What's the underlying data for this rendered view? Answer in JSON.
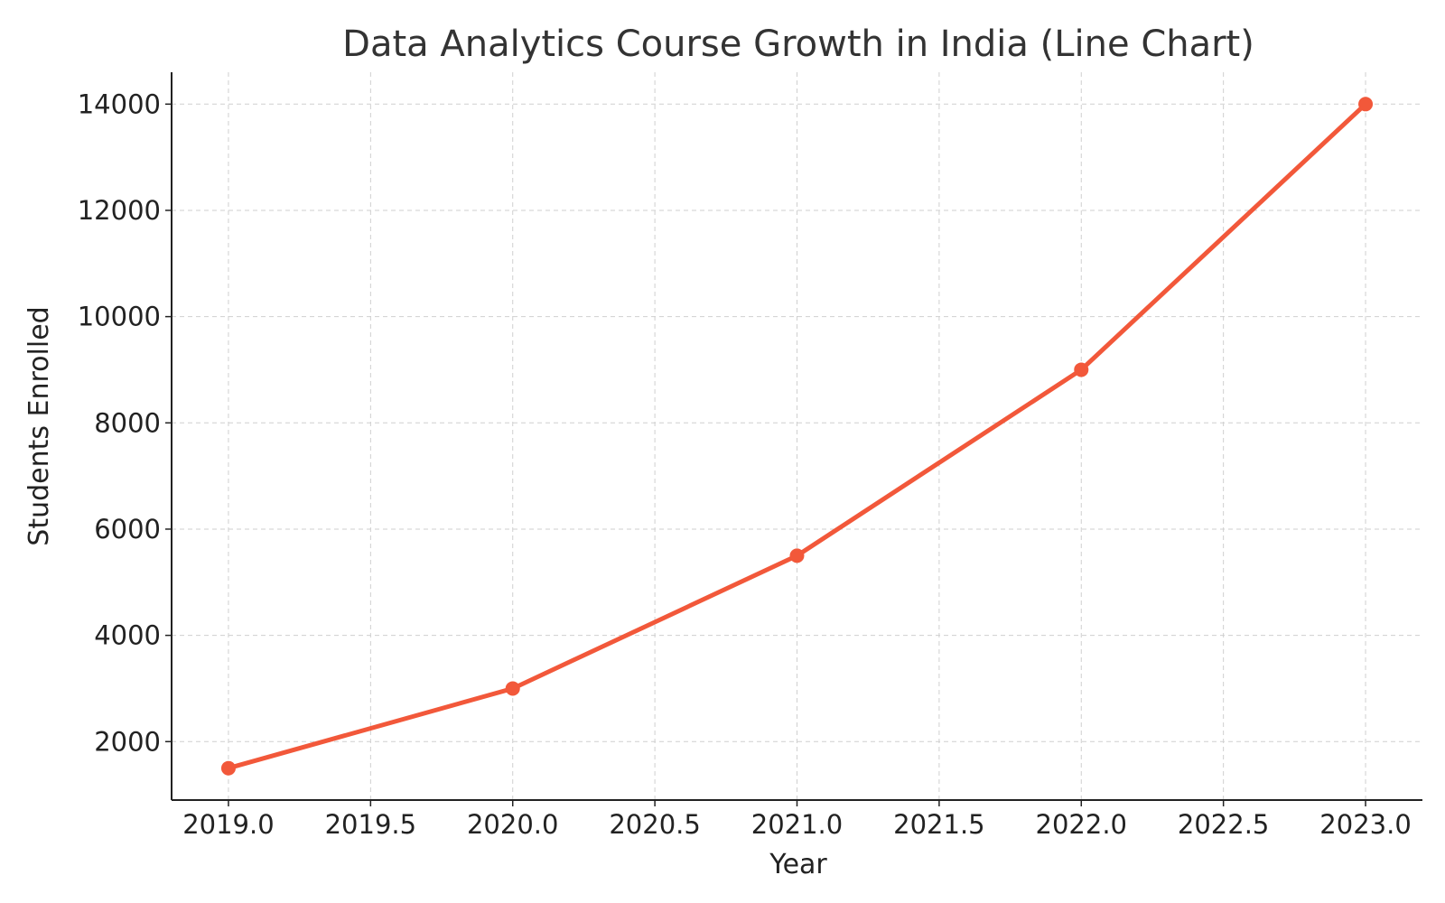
{
  "chart_data": {
    "type": "line",
    "title": "Data Analytics Course Growth in India (Line Chart)",
    "xlabel": "Year",
    "ylabel": "Students Enrolled",
    "xlim": [
      2018.8,
      2023.2
    ],
    "ylim": [
      900,
      14600
    ],
    "xticks": [
      2019.0,
      2019.5,
      2020.0,
      2020.5,
      2021.0,
      2021.5,
      2022.0,
      2022.5,
      2023.0
    ],
    "xtick_labels": [
      "2019.0",
      "2019.5",
      "2020.0",
      "2020.5",
      "2021.0",
      "2021.5",
      "2022.0",
      "2022.5",
      "2023.0"
    ],
    "yticks": [
      2000,
      4000,
      6000,
      8000,
      10000,
      12000,
      14000
    ],
    "ytick_labels": [
      "2000",
      "4000",
      "6000",
      "8000",
      "10000",
      "12000",
      "14000"
    ],
    "grid": true,
    "series": [
      {
        "name": "Students Enrolled",
        "color": "#f2583a",
        "x": [
          2019,
          2020,
          2021,
          2022,
          2023
        ],
        "y": [
          1500,
          3000,
          5500,
          9000,
          14000
        ]
      }
    ]
  }
}
